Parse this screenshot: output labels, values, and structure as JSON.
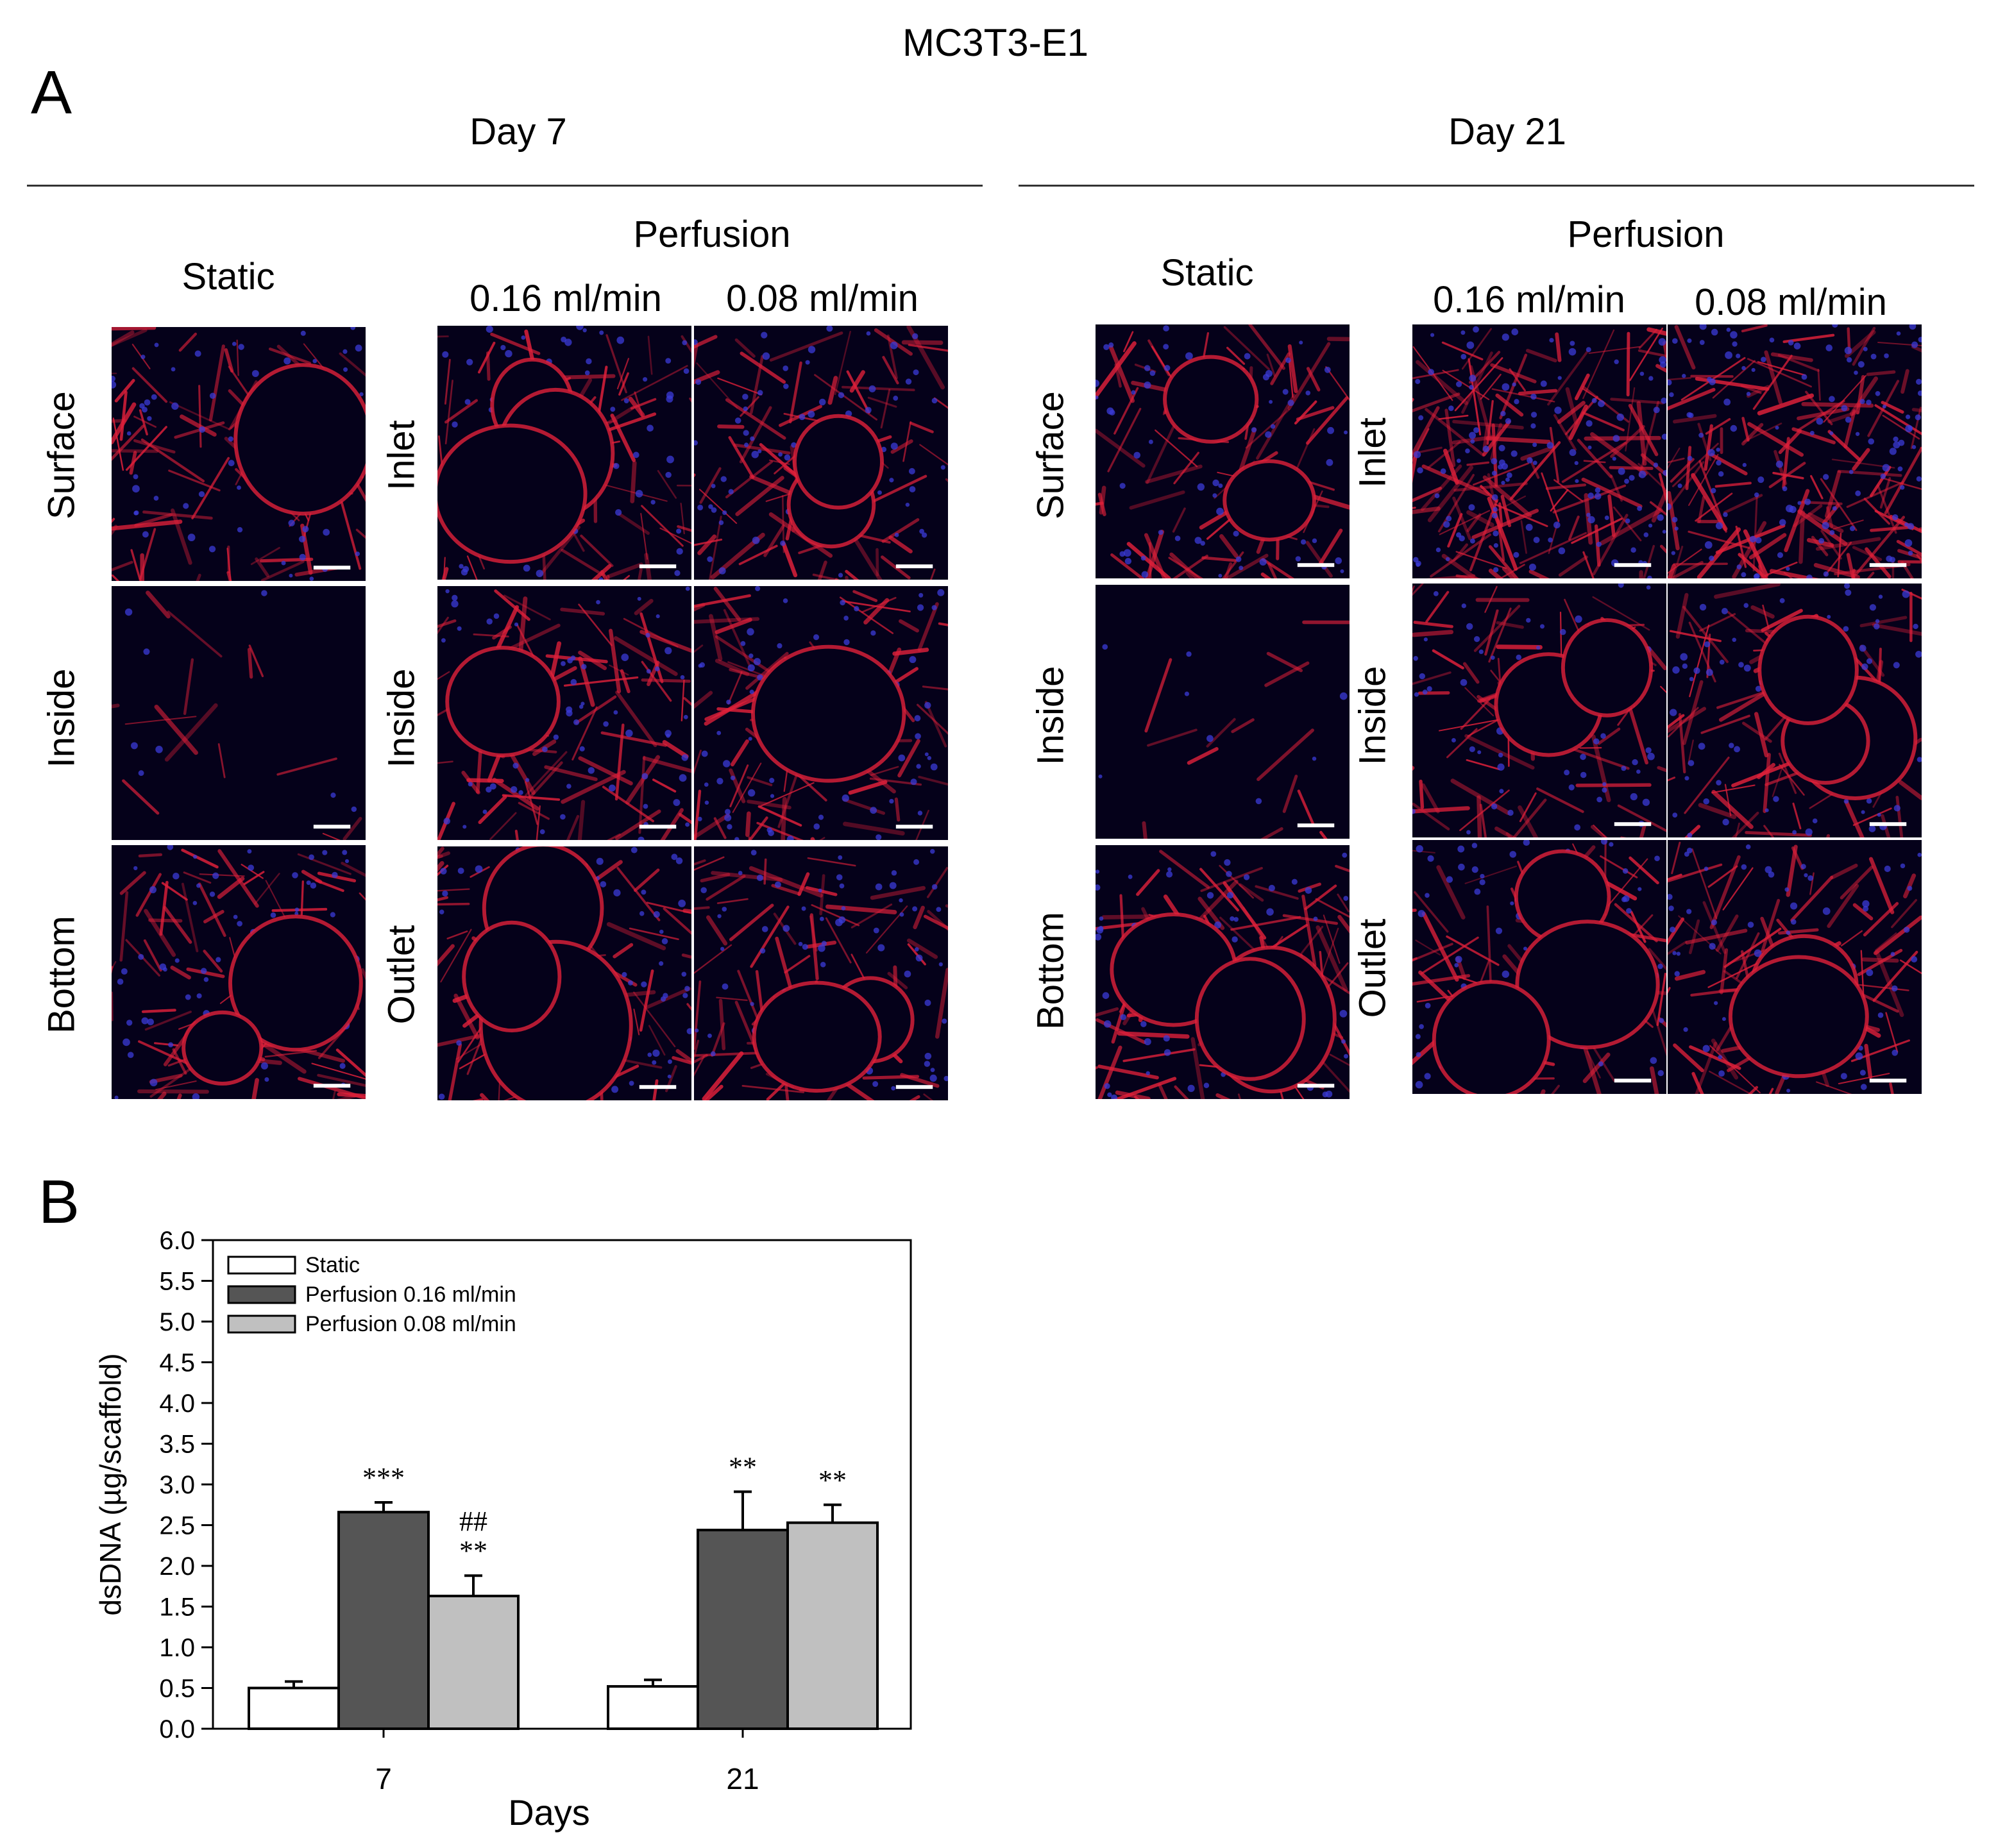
{
  "figure": {
    "title": "MC3T3-E1",
    "panel_a_label": "A",
    "panel_b_label": "B",
    "scale_bar_color": "#ffffff",
    "stain_colors": {
      "actin": "#e0203a",
      "nuclei": "#3b3bd8",
      "background": "#05011a"
    }
  },
  "panel_a": {
    "days": [
      {
        "label": "Day 7",
        "static_label": "Static",
        "perfusion_label": "Perfusion",
        "flow_rates": [
          "0.16 ml/min",
          "0.08 ml/min"
        ],
        "static_rows": [
          "Surface",
          "Inside",
          "Bottom"
        ],
        "perfusion_rows": [
          "Inlet",
          "Inside",
          "Outlet"
        ]
      },
      {
        "label": "Day 21",
        "static_label": "Static",
        "perfusion_label": "Perfusion",
        "flow_rates": [
          "0.16 ml/min",
          "0.08 ml/min"
        ],
        "static_rows": [
          "Surface",
          "Inside",
          "Bottom"
        ],
        "perfusion_rows": [
          "Inlet",
          "Inside",
          "Outlet"
        ]
      }
    ]
  },
  "chart_data": {
    "type": "bar",
    "categories": [
      "7",
      "21"
    ],
    "series": [
      {
        "name": "Static",
        "values": [
          0.5,
          0.52
        ],
        "errors": [
          0.08,
          0.08
        ],
        "color": "#ffffff",
        "annotations": [
          "",
          ""
        ]
      },
      {
        "name": "Perfusion 0.16 ml/min",
        "values": [
          2.66,
          2.44
        ],
        "errors": [
          0.12,
          0.47
        ],
        "color": "#555555",
        "annotations": [
          "***",
          "**"
        ]
      },
      {
        "name": "Perfusion 0.08 ml/min",
        "values": [
          1.63,
          2.53
        ],
        "errors": [
          0.25,
          0.22
        ],
        "color": "#c0c0c0",
        "annotations": [
          "##\n**",
          "**"
        ]
      }
    ],
    "xlabel": "Days",
    "ylabel": "dsDNA (µg/scaffold)",
    "ylim": [
      0,
      6.0
    ],
    "yticks": [
      "0.0",
      "0.5",
      "1.0",
      "1.5",
      "2.0",
      "2.5",
      "3.0",
      "3.5",
      "4.0",
      "4.5",
      "5.0",
      "5.5",
      "6.0"
    ],
    "legend_position": "top-left",
    "grid": false
  }
}
